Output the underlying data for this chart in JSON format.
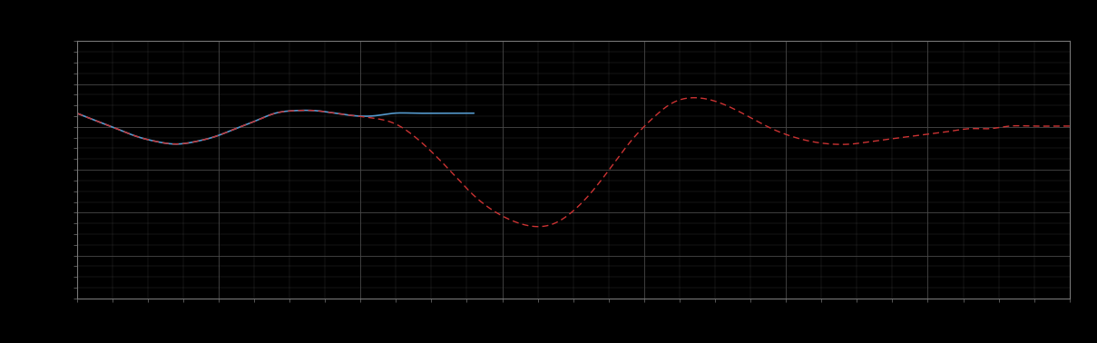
{
  "background_color": "#000000",
  "plot_bg_color": "#000000",
  "grid_color": "#4a4a4a",
  "line_blue_color": "#5599cc",
  "line_red_color": "#cc3333",
  "figsize": [
    12.09,
    3.78
  ],
  "dpi": 100,
  "xlim": [
    0,
    100
  ],
  "ylim": [
    0,
    100
  ],
  "blue_x": [
    0,
    2,
    4,
    6,
    8,
    10,
    12,
    14,
    16,
    18,
    20,
    22,
    24,
    26,
    28,
    30,
    32,
    34,
    36,
    38,
    40
  ],
  "blue_y": [
    72,
    69,
    66,
    63,
    61,
    60,
    61,
    63,
    66,
    69,
    72,
    73,
    73,
    72,
    71,
    71,
    72,
    72,
    72,
    72,
    72
  ],
  "red_x": [
    0,
    2,
    4,
    6,
    8,
    10,
    12,
    14,
    16,
    18,
    20,
    22,
    24,
    26,
    28,
    30,
    32,
    34,
    36,
    38,
    40,
    42,
    44,
    46,
    48,
    50,
    52,
    54,
    56,
    58,
    60,
    62,
    64,
    66,
    68,
    70,
    72,
    74,
    76,
    78,
    80,
    82,
    84,
    86,
    88,
    90,
    92,
    94,
    96,
    98,
    100
  ],
  "red_y": [
    72,
    69,
    66,
    63,
    61,
    60,
    61,
    63,
    66,
    69,
    72,
    73,
    73,
    72,
    71,
    70,
    68,
    63,
    56,
    48,
    40,
    34,
    30,
    28,
    29,
    34,
    42,
    52,
    62,
    70,
    76,
    78,
    77,
    74,
    70,
    66,
    63,
    61,
    60,
    60,
    61,
    62,
    63,
    64,
    65,
    66,
    66,
    67,
    67,
    67,
    67
  ],
  "n_interp": 1000,
  "blue_end_x": 40,
  "red_start_x": 0,
  "major_xticks": 7,
  "major_yticks": 6,
  "minor_x_div": 4,
  "minor_y_div": 4
}
